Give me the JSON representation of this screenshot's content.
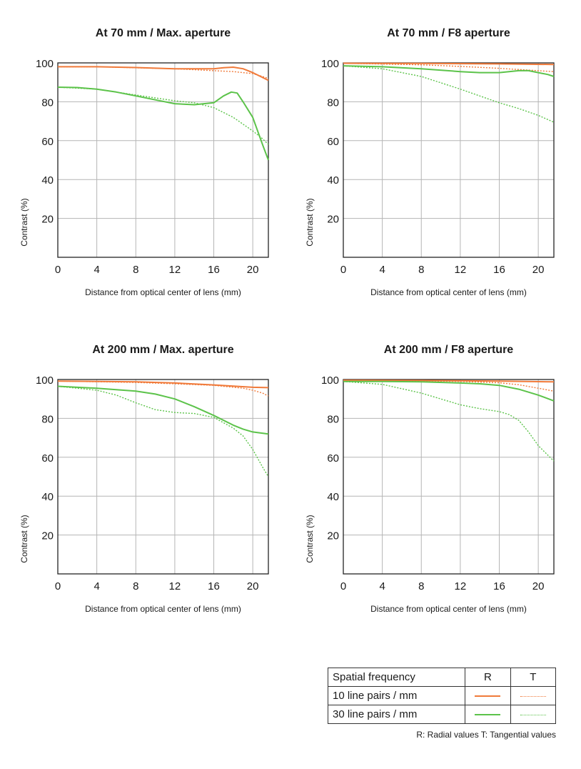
{
  "colors": {
    "r10": "#f07a3a",
    "r30": "#5cc34a",
    "grid": "#b5b5b5",
    "axis": "#222222"
  },
  "x_axis_label": "Distance from optical center of lens (mm)",
  "y_axis_label": "Contrast (%)",
  "legend": {
    "header": "Spatial frequency",
    "col_r": "R",
    "col_t": "T",
    "row1": "10 line pairs / mm",
    "row2": "30 line pairs / mm",
    "note": "R: Radial values  T: Tangential values"
  },
  "chart_data": [
    {
      "type": "line",
      "title": "At 70 mm / Max. aperture",
      "xlabel": "Distance from optical center of lens (mm)",
      "ylabel": "Contrast (%)",
      "xlim": [
        0,
        21.6
      ],
      "ylim": [
        0,
        100
      ],
      "xticks": [
        0,
        4,
        8,
        12,
        16,
        20
      ],
      "yticks": [
        20,
        40,
        60,
        80,
        100
      ],
      "grid": true,
      "series": [
        {
          "name": "10 line pairs / mm R",
          "style": "solid",
          "color": "#f07a3a",
          "points": [
            [
              0,
              98
            ],
            [
              4,
              98
            ],
            [
              8,
              97.6
            ],
            [
              12,
              97
            ],
            [
              14,
              97
            ],
            [
              16,
              97
            ],
            [
              17,
              97.5
            ],
            [
              18,
              97.8
            ],
            [
              19,
              97
            ],
            [
              20,
              95
            ],
            [
              21,
              92.5
            ],
            [
              21.6,
              91
            ]
          ]
        },
        {
          "name": "10 line pairs / mm T",
          "style": "dotted",
          "color": "#f07a3a",
          "points": [
            [
              0,
              98
            ],
            [
              4,
              98
            ],
            [
              8,
              97.5
            ],
            [
              12,
              97
            ],
            [
              16,
              96
            ],
            [
              18,
              95.5
            ],
            [
              20,
              94.5
            ],
            [
              21,
              93
            ],
            [
              21.6,
              92
            ]
          ]
        },
        {
          "name": "30 line pairs / mm R",
          "style": "solid",
          "color": "#5cc34a",
          "points": [
            [
              0,
              87.5
            ],
            [
              2,
              87.3
            ],
            [
              4,
              86.5
            ],
            [
              6,
              85
            ],
            [
              8,
              83
            ],
            [
              10,
              81
            ],
            [
              12,
              79
            ],
            [
              14,
              78.5
            ],
            [
              16,
              79.5
            ],
            [
              17,
              83
            ],
            [
              17.8,
              85
            ],
            [
              18.4,
              84.5
            ],
            [
              19,
              80
            ],
            [
              20,
              72
            ],
            [
              21,
              58
            ],
            [
              21.6,
              50
            ]
          ]
        },
        {
          "name": "30 line pairs / mm T",
          "style": "dotted",
          "color": "#5cc34a",
          "points": [
            [
              0,
              87.5
            ],
            [
              4,
              86.5
            ],
            [
              8,
              83.5
            ],
            [
              10,
              82
            ],
            [
              12,
              80.5
            ],
            [
              14,
              79.5
            ],
            [
              16,
              77
            ],
            [
              18,
              72
            ],
            [
              20,
              65
            ],
            [
              21,
              61
            ],
            [
              21.6,
              58
            ]
          ]
        }
      ]
    },
    {
      "type": "line",
      "title": "At 70 mm / F8 aperture",
      "xlabel": "Distance from optical center of lens (mm)",
      "ylabel": "Contrast (%)",
      "xlim": [
        0,
        21.6
      ],
      "ylim": [
        0,
        100
      ],
      "xticks": [
        0,
        4,
        8,
        12,
        16,
        20
      ],
      "yticks": [
        20,
        40,
        60,
        80,
        100
      ],
      "grid": true,
      "series": [
        {
          "name": "10 line pairs / mm R",
          "style": "solid",
          "color": "#f07a3a",
          "points": [
            [
              0,
              99.8
            ],
            [
              8,
              99.7
            ],
            [
              16,
              99.5
            ],
            [
              21.6,
              99.2
            ]
          ]
        },
        {
          "name": "10 line pairs / mm T",
          "style": "dotted",
          "color": "#f07a3a",
          "points": [
            [
              0,
              99.8
            ],
            [
              8,
              99
            ],
            [
              12,
              98.2
            ],
            [
              16,
              97.2
            ],
            [
              20,
              96
            ],
            [
              21.6,
              95.5
            ]
          ]
        },
        {
          "name": "30 line pairs / mm R",
          "style": "solid",
          "color": "#5cc34a",
          "points": [
            [
              0,
              98.5
            ],
            [
              4,
              98
            ],
            [
              8,
              97
            ],
            [
              12,
              95.5
            ],
            [
              14,
              95
            ],
            [
              16,
              95
            ],
            [
              18,
              96
            ],
            [
              19,
              96
            ],
            [
              20,
              95
            ],
            [
              21,
              94
            ],
            [
              21.6,
              93
            ]
          ]
        },
        {
          "name": "30 line pairs / mm T",
          "style": "dotted",
          "color": "#5cc34a",
          "points": [
            [
              0,
              98.5
            ],
            [
              4,
              97
            ],
            [
              8,
              93
            ],
            [
              12,
              86.5
            ],
            [
              16,
              79.5
            ],
            [
              18,
              76.5
            ],
            [
              20,
              73
            ],
            [
              21.6,
              69.5
            ]
          ]
        }
      ]
    },
    {
      "type": "line",
      "title": "At 200 mm / Max. aperture",
      "xlabel": "Distance from optical center of lens (mm)",
      "ylabel": "Contrast (%)",
      "xlim": [
        0,
        21.6
      ],
      "ylim": [
        0,
        100
      ],
      "xticks": [
        0,
        4,
        8,
        12,
        16,
        20
      ],
      "yticks": [
        20,
        40,
        60,
        80,
        100
      ],
      "grid": true,
      "series": [
        {
          "name": "10 line pairs / mm R",
          "style": "solid",
          "color": "#f07a3a",
          "points": [
            [
              0,
              99.2
            ],
            [
              8,
              98.8
            ],
            [
              12,
              98.2
            ],
            [
              16,
              97.2
            ],
            [
              20,
              96
            ],
            [
              21.6,
              95.8
            ]
          ]
        },
        {
          "name": "10 line pairs / mm T",
          "style": "dotted",
          "color": "#f07a3a",
          "points": [
            [
              0,
              99.2
            ],
            [
              8,
              98.5
            ],
            [
              12,
              97.8
            ],
            [
              16,
              97
            ],
            [
              19,
              95.5
            ],
            [
              20,
              94.5
            ],
            [
              21,
              93
            ],
            [
              21.6,
              91.5
            ]
          ]
        },
        {
          "name": "30 line pairs / mm R",
          "style": "solid",
          "color": "#5cc34a",
          "points": [
            [
              0,
              96.5
            ],
            [
              4,
              95.5
            ],
            [
              8,
              94
            ],
            [
              10,
              92.5
            ],
            [
              12,
              90
            ],
            [
              14,
              86
            ],
            [
              16,
              81.5
            ],
            [
              18,
              76.5
            ],
            [
              19,
              74.5
            ],
            [
              20,
              73
            ],
            [
              21.6,
              72
            ]
          ]
        },
        {
          "name": "30 line pairs / mm T",
          "style": "dotted",
          "color": "#5cc34a",
          "points": [
            [
              0,
              96.5
            ],
            [
              4,
              94.5
            ],
            [
              6,
              92
            ],
            [
              8,
              88
            ],
            [
              10,
              84.5
            ],
            [
              12,
              83
            ],
            [
              14,
              82.5
            ],
            [
              16,
              80.5
            ],
            [
              18,
              75
            ],
            [
              19,
              71
            ],
            [
              20,
              64
            ],
            [
              21,
              55
            ],
            [
              21.6,
              50
            ]
          ]
        }
      ]
    },
    {
      "type": "line",
      "title": "At 200 mm / F8 aperture",
      "xlabel": "Distance from optical center of lens (mm)",
      "ylabel": "Contrast (%)",
      "xlim": [
        0,
        21.6
      ],
      "ylim": [
        0,
        100
      ],
      "xticks": [
        0,
        4,
        8,
        12,
        16,
        20
      ],
      "yticks": [
        20,
        40,
        60,
        80,
        100
      ],
      "grid": true,
      "series": [
        {
          "name": "10 line pairs / mm R",
          "style": "solid",
          "color": "#f07a3a",
          "points": [
            [
              0,
              99.6
            ],
            [
              8,
              99.5
            ],
            [
              16,
              99.2
            ],
            [
              21.6,
              98.8
            ]
          ]
        },
        {
          "name": "10 line pairs / mm T",
          "style": "dotted",
          "color": "#f07a3a",
          "points": [
            [
              0,
              99.6
            ],
            [
              8,
              99.3
            ],
            [
              12,
              99
            ],
            [
              16,
              98.3
            ],
            [
              18,
              97.3
            ],
            [
              20,
              95.5
            ],
            [
              21.6,
              94
            ]
          ]
        },
        {
          "name": "30 line pairs / mm R",
          "style": "solid",
          "color": "#5cc34a",
          "points": [
            [
              0,
              99
            ],
            [
              4,
              99
            ],
            [
              8,
              98.8
            ],
            [
              12,
              98.2
            ],
            [
              14,
              97.8
            ],
            [
              16,
              97
            ],
            [
              18,
              95
            ],
            [
              19,
              93.5
            ],
            [
              20,
              92
            ],
            [
              21.6,
              89
            ]
          ]
        },
        {
          "name": "30 line pairs / mm T",
          "style": "dotted",
          "color": "#5cc34a",
          "points": [
            [
              0,
              99
            ],
            [
              4,
              97.5
            ],
            [
              8,
              93
            ],
            [
              10,
              90
            ],
            [
              12,
              87
            ],
            [
              14,
              85
            ],
            [
              16,
              83.5
            ],
            [
              17,
              82
            ],
            [
              18,
              79
            ],
            [
              19,
              73
            ],
            [
              20,
              66
            ],
            [
              21,
              61
            ],
            [
              21.6,
              58
            ]
          ]
        }
      ]
    }
  ]
}
